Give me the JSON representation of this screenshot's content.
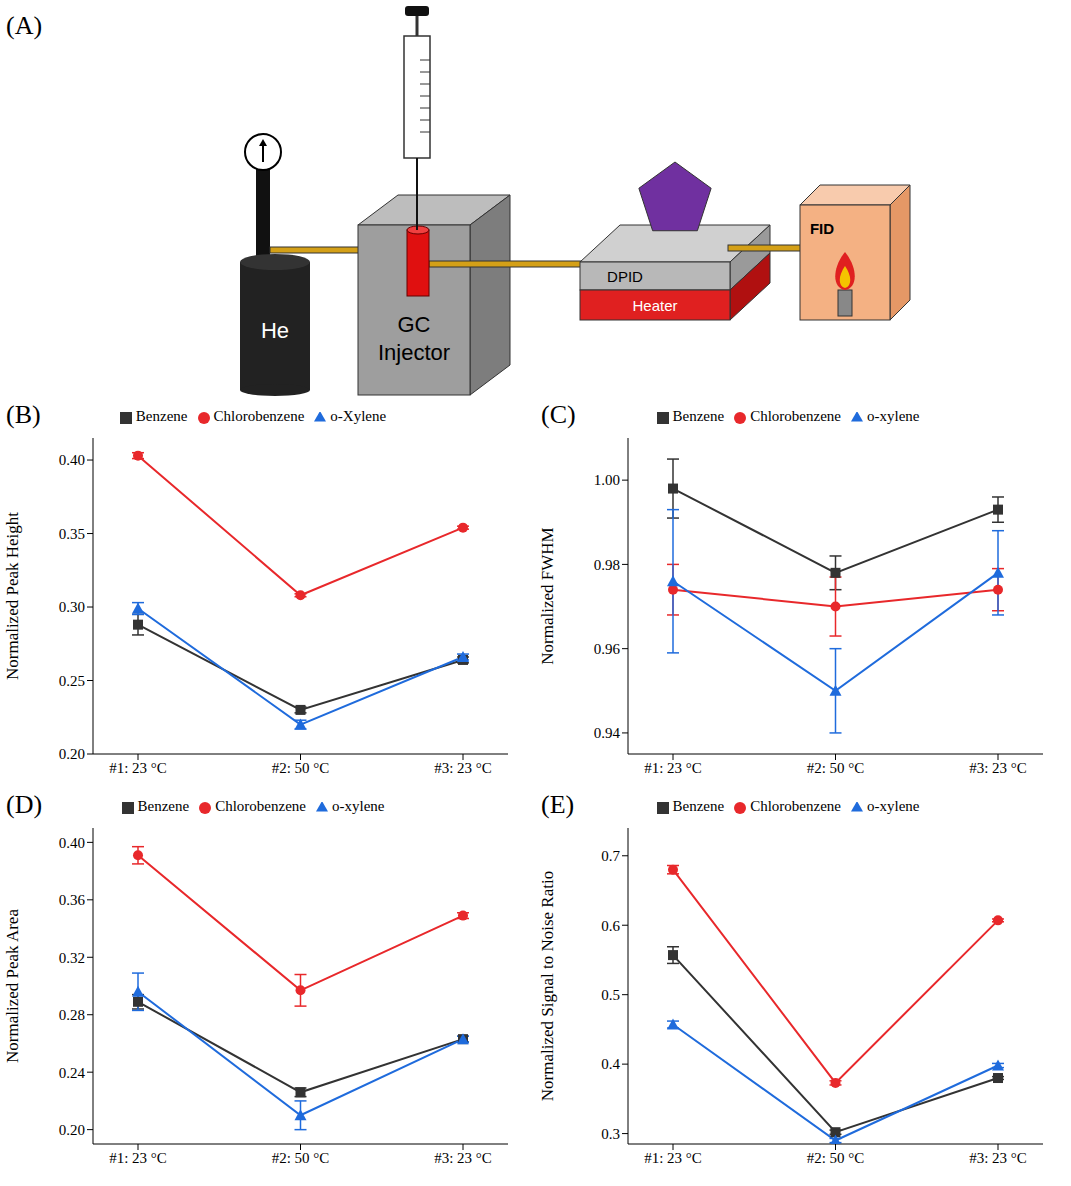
{
  "diagram": {
    "panel_label": "(A)",
    "gas": "He",
    "injector": "GC Injector",
    "detector": "DPID",
    "heater": "Heater",
    "fid": "FID"
  },
  "chart_data": [
    {
      "panel_label": "(B)",
      "type": "line",
      "y_label": "Normalized Peak Height",
      "categories": [
        "#1: 23 °C",
        "#2: 50 °C",
        "#3: 23 °C"
      ],
      "ylim": [
        0.2,
        0.415
      ],
      "yticks": [
        {
          "value": 0.2,
          "label": "0.20"
        },
        0.25,
        {
          "value": 0.3,
          "label": "0.30"
        },
        0.35,
        {
          "value": 0.4,
          "label": "0.40"
        }
      ],
      "legend": "top",
      "series": [
        {
          "name": "Benzene",
          "color": "#333333",
          "marker": "square",
          "values": [
            0.288,
            0.23,
            0.264
          ],
          "errors": [
            0.007,
            0.002,
            0.002
          ]
        },
        {
          "name": "Chlorobenzene",
          "color": "#e8282b",
          "marker": "circle",
          "values": [
            0.403,
            0.308,
            0.354
          ],
          "errors": [
            0.002,
            0.001,
            0.001
          ]
        },
        {
          "name": "o-Xylene",
          "color": "#1f6bdc",
          "marker": "triangle",
          "values": [
            0.299,
            0.22,
            0.266
          ],
          "errors": [
            0.004,
            0.003,
            0.002
          ]
        }
      ]
    },
    {
      "panel_label": "(C)",
      "type": "line",
      "y_label": "Normalized FWHM",
      "categories": [
        "#1: 23 °C",
        "#2: 50 °C",
        "#3: 23 °C"
      ],
      "ylim": [
        0.935,
        1.01
      ],
      "yticks": [
        0.94,
        0.96,
        0.98,
        {
          "value": 1,
          "label": "1.00"
        }
      ],
      "legend": "top",
      "series": [
        {
          "name": "Benzene",
          "color": "#333333",
          "marker": "square",
          "values": [
            0.998,
            0.978,
            0.993
          ],
          "errors": [
            0.007,
            0.004,
            0.003
          ]
        },
        {
          "name": "Chlorobenzene",
          "color": "#e8282b",
          "marker": "circle",
          "values": [
            0.974,
            0.97,
            0.974
          ],
          "errors": [
            0.006,
            0.007,
            0.005
          ]
        },
        {
          "name": "o-xylene",
          "color": "#1f6bdc",
          "marker": "triangle",
          "values": [
            0.976,
            0.95,
            0.978
          ],
          "errors": [
            0.017,
            0.01,
            0.01
          ]
        }
      ]
    },
    {
      "panel_label": "(D)",
      "type": "line",
      "y_label": "Normalized Peak Area",
      "categories": [
        "#1: 23 °C",
        "#2: 50 °C",
        "#3: 23 °C"
      ],
      "ylim": [
        0.19,
        0.41
      ],
      "yticks": [
        {
          "value": 0.2,
          "label": "0.20"
        },
        0.24,
        0.28,
        0.32,
        0.36,
        {
          "value": 0.4,
          "label": "0.40"
        }
      ],
      "legend": "top",
      "series": [
        {
          "name": "Benzene",
          "color": "#333333",
          "marker": "square",
          "values": [
            0.289,
            0.226,
            0.263
          ],
          "errors": [
            0.005,
            0.003,
            0.002
          ]
        },
        {
          "name": "Chlorobenzene",
          "color": "#e8282b",
          "marker": "circle",
          "values": [
            0.391,
            0.297,
            0.349
          ],
          "errors": [
            0.006,
            0.011,
            0.002
          ]
        },
        {
          "name": "o-xylene",
          "color": "#1f6bdc",
          "marker": "triangle",
          "values": [
            0.296,
            0.21,
            0.263
          ],
          "errors": [
            0.013,
            0.01,
            0.002
          ]
        }
      ]
    },
    {
      "panel_label": "(E)",
      "type": "line",
      "y_label": "Normalized Signal to Noise Ratio",
      "categories": [
        "#1: 23 °C",
        "#2: 50 °C",
        "#3: 23 °C"
      ],
      "ylim": [
        0.285,
        0.74
      ],
      "yticks": [
        0.3,
        0.4,
        0.5,
        0.6,
        0.7
      ],
      "legend": "top",
      "series": [
        {
          "name": "Benzene",
          "color": "#333333",
          "marker": "square",
          "values": [
            0.557,
            0.302,
            0.38
          ],
          "errors": [
            0.012,
            0.003,
            0.002
          ]
        },
        {
          "name": "Chlorobenzene",
          "color": "#e8282b",
          "marker": "circle",
          "values": [
            0.68,
            0.373,
            0.607
          ],
          "errors": [
            0.006,
            0.003,
            0.002
          ]
        },
        {
          "name": "o-xylene",
          "color": "#1f6bdc",
          "marker": "triangle",
          "values": [
            0.457,
            0.29,
            0.398
          ],
          "errors": [
            0.005,
            0.003,
            0.003
          ]
        }
      ]
    }
  ]
}
